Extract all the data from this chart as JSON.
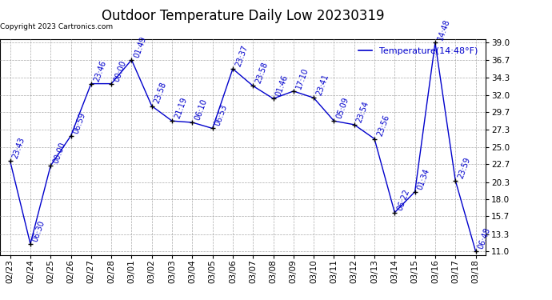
{
  "title": "Outdoor Temperature Daily Low 20230319",
  "legend_label": "Temperature(14:48°F)",
  "copyright": "Copyright 2023 Cartronics.com",
  "dates": [
    "02/23",
    "02/24",
    "02/25",
    "02/26",
    "02/27",
    "02/28",
    "03/01",
    "03/02",
    "03/03",
    "03/04",
    "03/05",
    "03/06",
    "03/07",
    "03/08",
    "03/09",
    "03/10",
    "03/11",
    "03/12",
    "03/13",
    "03/14",
    "03/15",
    "03/16",
    "03/17",
    "03/18"
  ],
  "values": [
    23.1,
    12.0,
    22.5,
    26.5,
    33.5,
    33.5,
    36.7,
    30.5,
    28.5,
    28.3,
    27.5,
    35.5,
    33.2,
    31.5,
    32.5,
    31.6,
    28.5,
    28.0,
    26.1,
    16.2,
    19.0,
    39.0,
    20.5,
    11.0
  ],
  "time_labels": [
    "23:43",
    "06:30",
    "00:00",
    "06:59",
    "23:46",
    "00:00",
    "01:49",
    "23:58",
    "21:19",
    "06:10",
    "06:53",
    "23:37",
    "23:58",
    "01:46",
    "17:10",
    "23:41",
    "05:09",
    "23:54",
    "23:56",
    "06:22",
    "01:34",
    "14:48",
    "23:59",
    "06:48"
  ],
  "line_color": "#0000cc",
  "point_color": "#000000",
  "label_color": "#0000cc",
  "grid_color": "#aaaaaa",
  "bg_color": "#ffffff",
  "ylim": [
    11.0,
    39.0
  ],
  "yticks": [
    11.0,
    13.3,
    15.7,
    18.0,
    20.3,
    22.7,
    25.0,
    27.3,
    29.7,
    32.0,
    34.3,
    36.7,
    39.0
  ],
  "title_fontsize": 12,
  "label_fontsize": 7,
  "tick_fontsize": 7.5,
  "legend_fontsize": 8,
  "copyright_fontsize": 6.5
}
